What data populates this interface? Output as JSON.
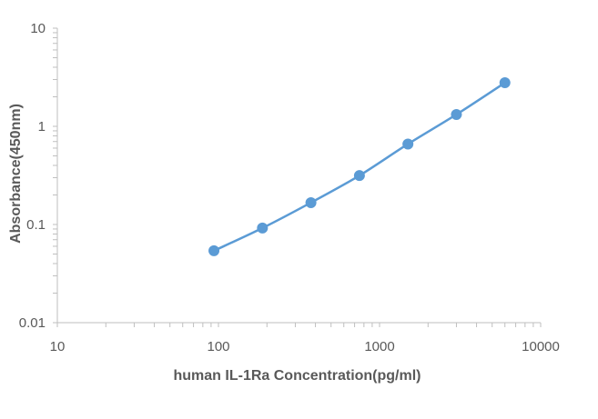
{
  "chart_data": {
    "type": "scatter",
    "xlabel": "human IL-1Ra Concentration(pg/ml)",
    "ylabel": "Absorbance(450nm)",
    "xscale": "log",
    "yscale": "log",
    "xlim": [
      10,
      10000
    ],
    "ylim": [
      0.01,
      10
    ],
    "x_ticks": [
      "10",
      "100",
      "1000",
      "10000"
    ],
    "y_ticks": [
      "0.01",
      "0.1",
      "1",
      "10"
    ],
    "grid": false,
    "legend": "none",
    "series": [
      {
        "x": [
          93.75,
          187.5,
          375,
          750,
          1500,
          3000,
          6000
        ],
        "y": [
          0.054,
          0.092,
          0.167,
          0.315,
          0.66,
          1.32,
          2.78
        ],
        "color": "#5B9BD5",
        "marker": "circle",
        "line": "smooth"
      }
    ]
  }
}
